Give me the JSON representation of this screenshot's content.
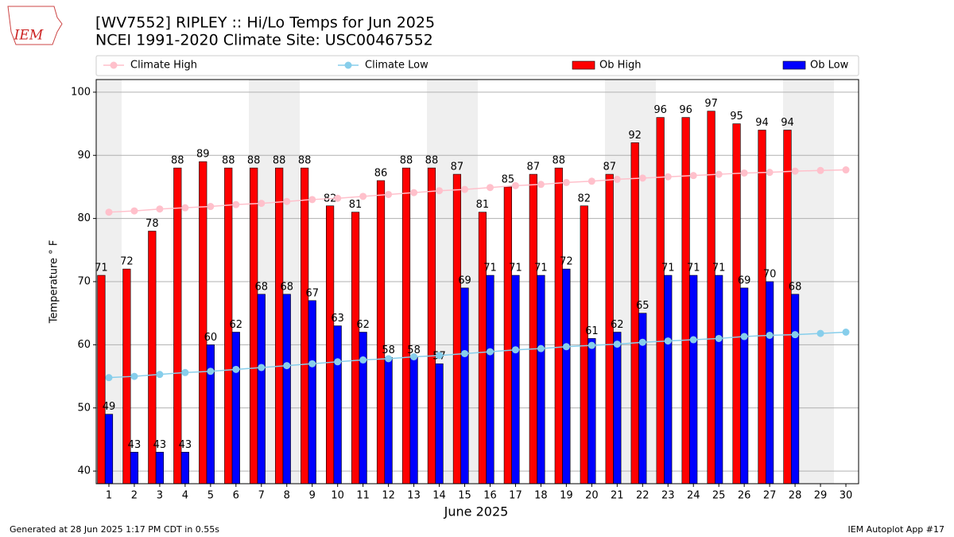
{
  "chart_data": {
    "type": "bar",
    "title": "[WV7552] RIPLEY :: Hi/Lo Temps for Jun 2025",
    "subtitle": "NCEI 1991-2020 Climate Site: USC00467552",
    "xlabel": "June 2025",
    "ylabel": "Temperature ° F",
    "logo_text": "IEM",
    "footer_left": "Generated at 28 Jun 2025 1:17 PM CDT in 0.55s",
    "footer_right": "IEM Autoplot App #17",
    "x": [
      1,
      2,
      3,
      4,
      5,
      6,
      7,
      8,
      9,
      10,
      11,
      12,
      13,
      14,
      15,
      16,
      17,
      18,
      19,
      20,
      21,
      22,
      23,
      24,
      25,
      26,
      27,
      28,
      29,
      30
    ],
    "xlim": [
      0.5,
      30.5
    ],
    "xticks": [
      1,
      2,
      3,
      4,
      5,
      6,
      7,
      8,
      9,
      10,
      11,
      12,
      13,
      14,
      15,
      16,
      17,
      18,
      19,
      20,
      21,
      22,
      23,
      24,
      25,
      26,
      27,
      28,
      29,
      30
    ],
    "ylim": [
      38,
      102
    ],
    "yticks": [
      40,
      50,
      60,
      70,
      80,
      90,
      100
    ],
    "grid": true,
    "series": [
      {
        "name": "Climate High",
        "kind": "line",
        "color": "#ffc0cb",
        "values": [
          81.0,
          81.2,
          81.5,
          81.7,
          81.9,
          82.2,
          82.4,
          82.7,
          83.0,
          83.2,
          83.5,
          83.8,
          84.1,
          84.4,
          84.6,
          84.9,
          85.2,
          85.4,
          85.7,
          85.9,
          86.2,
          86.4,
          86.6,
          86.8,
          87.0,
          87.2,
          87.3,
          87.5,
          87.6,
          87.7
        ]
      },
      {
        "name": "Climate Low",
        "kind": "line",
        "color": "#87ceeb",
        "values": [
          54.8,
          55.0,
          55.3,
          55.6,
          55.8,
          56.1,
          56.4,
          56.7,
          57.0,
          57.3,
          57.6,
          57.8,
          58.1,
          58.3,
          58.6,
          58.9,
          59.2,
          59.4,
          59.7,
          59.9,
          60.1,
          60.4,
          60.6,
          60.8,
          61.0,
          61.3,
          61.5,
          61.6,
          61.8,
          62.0
        ]
      },
      {
        "name": "Ob High",
        "kind": "bar",
        "color": "#ff0000",
        "values": [
          71,
          72,
          78,
          88,
          89,
          88,
          88,
          88,
          88,
          82,
          81,
          86,
          88,
          88,
          87,
          81,
          85,
          87,
          88,
          82,
          87,
          92,
          96,
          96,
          97,
          95,
          94,
          94,
          null,
          null
        ]
      },
      {
        "name": "Ob Low",
        "kind": "bar",
        "color": "#0000ff",
        "values": [
          49,
          43,
          43,
          43,
          60,
          62,
          68,
          68,
          67,
          63,
          62,
          58,
          58,
          57,
          69,
          71,
          71,
          71,
          72,
          61,
          62,
          65,
          71,
          71,
          71,
          69,
          70,
          68,
          null,
          null
        ]
      }
    ]
  }
}
